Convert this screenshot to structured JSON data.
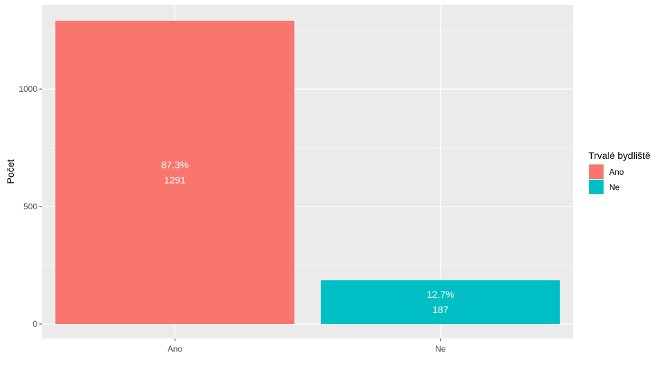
{
  "chart_data": {
    "type": "bar",
    "categories": [
      "Ano",
      "Ne"
    ],
    "values": [
      1291,
      187
    ],
    "percent_labels": [
      "87.3%",
      "12.7%"
    ],
    "count_labels": [
      "1291",
      "187"
    ],
    "xlabel": "",
    "ylabel": "Počet",
    "ylim": [
      0,
      1350
    ],
    "yticks": [
      0,
      500,
      1000
    ],
    "ytick_labels": [
      "0",
      "500",
      "1000"
    ],
    "grid": true,
    "legend": {
      "title": "Trvalé bydliště",
      "placement": "right",
      "entries": [
        "Ano",
        "Ne"
      ]
    },
    "colors": [
      "#F8766D",
      "#00BFC4"
    ],
    "panel_background": "#EBEBEB",
    "grid_color": "#FFFFFF"
  }
}
